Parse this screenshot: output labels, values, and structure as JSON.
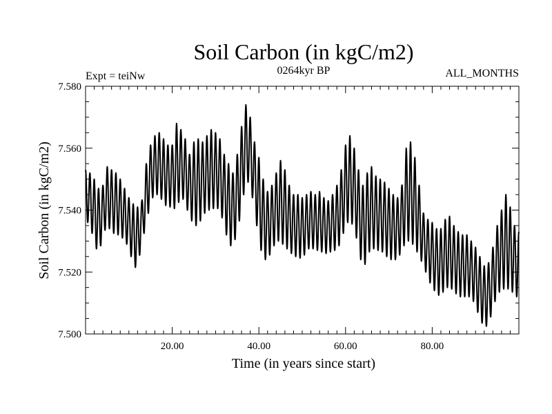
{
  "chart_data": {
    "type": "line",
    "title": "Soil Carbon (in kgC/m2)",
    "subtitle": "0264kyr BP",
    "annotation_left": "Expt = teiNw",
    "annotation_right": "ALL_MONTHS",
    "xlabel": "Time (in years since start)",
    "ylabel": "Soil Carbon (in kgC/m2)",
    "xlim": [
      0,
      100
    ],
    "ylim": [
      7.5,
      7.58
    ],
    "x_ticks": [
      20,
      40,
      60,
      80
    ],
    "x_tick_labels": [
      "20.00",
      "40.00",
      "60.00",
      "80.00"
    ],
    "y_ticks": [
      7.5,
      7.52,
      7.54,
      7.56,
      7.58
    ],
    "y_tick_labels": [
      "7.500",
      "7.520",
      "7.540",
      "7.560",
      "7.580"
    ],
    "grid": false,
    "series": [
      {
        "name": "Soil Carbon",
        "color": "#000000",
        "cycle_period_years": 1,
        "x": [
          0,
          1,
          2,
          3,
          4,
          5,
          6,
          7,
          8,
          9,
          10,
          11,
          12,
          13,
          14,
          15,
          16,
          17,
          18,
          19,
          20,
          21,
          22,
          23,
          24,
          25,
          26,
          27,
          28,
          29,
          30,
          31,
          32,
          33,
          34,
          35,
          36,
          37,
          38,
          39,
          40,
          41,
          42,
          43,
          44,
          45,
          46,
          47,
          48,
          49,
          50,
          51,
          52,
          53,
          54,
          55,
          56,
          57,
          58,
          59,
          60,
          61,
          62,
          63,
          64,
          65,
          66,
          67,
          68,
          69,
          70,
          71,
          72,
          73,
          74,
          75,
          76,
          77,
          78,
          79,
          80,
          81,
          82,
          83,
          84,
          85,
          86,
          87,
          88,
          89,
          90,
          91,
          92,
          93,
          94,
          95,
          96,
          97,
          98,
          99,
          100
        ],
        "min": [
          7.537,
          7.535,
          7.53,
          7.525,
          7.532,
          7.535,
          7.533,
          7.532,
          7.532,
          7.53,
          7.528,
          7.522,
          7.521,
          7.53,
          7.535,
          7.543,
          7.545,
          7.545,
          7.542,
          7.541,
          7.541,
          7.54,
          7.545,
          7.542,
          7.538,
          7.535,
          7.535,
          7.538,
          7.54,
          7.54,
          7.541,
          7.54,
          7.535,
          7.529,
          7.528,
          7.533,
          7.54,
          7.55,
          7.548,
          7.54,
          7.53,
          7.524,
          7.524,
          7.527,
          7.53,
          7.53,
          7.528,
          7.527,
          7.525,
          7.525,
          7.524,
          7.527,
          7.528,
          7.527,
          7.527,
          7.526,
          7.526,
          7.527,
          7.527,
          7.53,
          7.535,
          7.537,
          7.534,
          7.528,
          7.52,
          7.525,
          7.528,
          7.527,
          7.527,
          7.526,
          7.524,
          7.524,
          7.524,
          7.527,
          7.53,
          7.53,
          7.528,
          7.525,
          7.522,
          7.518,
          7.515,
          7.513,
          7.512,
          7.515,
          7.515,
          7.514,
          7.512,
          7.512,
          7.512,
          7.512,
          7.509,
          7.505,
          7.502,
          7.503,
          7.508,
          7.513,
          7.514,
          7.515,
          7.514,
          7.513,
          7.511
        ],
        "max": [
          7.553,
          7.552,
          7.55,
          7.547,
          7.548,
          7.554,
          7.553,
          7.552,
          7.55,
          7.547,
          7.544,
          7.542,
          7.541,
          7.543,
          7.555,
          7.561,
          7.564,
          7.565,
          7.563,
          7.561,
          7.561,
          7.568,
          7.566,
          7.563,
          7.558,
          7.562,
          7.563,
          7.562,
          7.564,
          7.566,
          7.565,
          7.563,
          7.558,
          7.555,
          7.552,
          7.558,
          7.567,
          7.574,
          7.57,
          7.562,
          7.557,
          7.55,
          7.546,
          7.548,
          7.552,
          7.556,
          7.553,
          7.548,
          7.545,
          7.545,
          7.544,
          7.545,
          7.546,
          7.545,
          7.546,
          7.544,
          7.543,
          7.545,
          7.548,
          7.553,
          7.561,
          7.564,
          7.56,
          7.553,
          7.548,
          7.552,
          7.554,
          7.551,
          7.55,
          7.549,
          7.547,
          7.545,
          7.544,
          7.548,
          7.56,
          7.562,
          7.557,
          7.548,
          7.539,
          7.537,
          7.536,
          7.534,
          7.534,
          7.537,
          7.538,
          7.535,
          7.533,
          7.532,
          7.532,
          7.53,
          7.528,
          7.525,
          7.522,
          7.523,
          7.528,
          7.535,
          7.54,
          7.545,
          7.541,
          7.535,
          7.533
        ]
      }
    ]
  }
}
